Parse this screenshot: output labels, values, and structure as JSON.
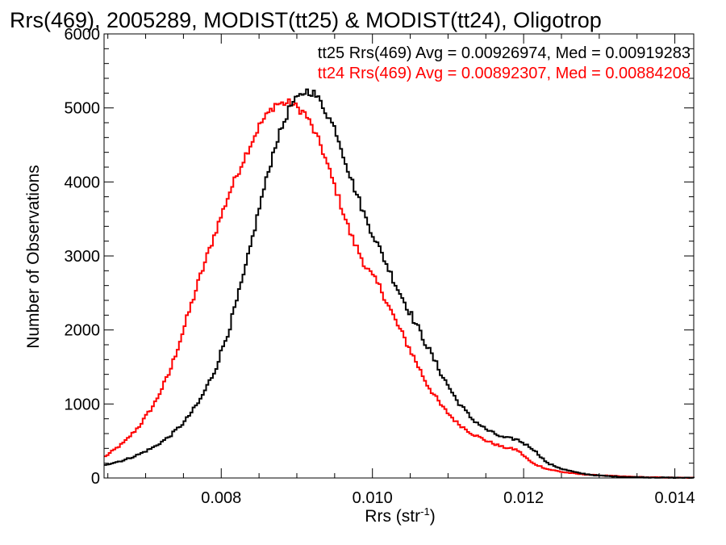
{
  "chart_data": {
    "type": "line",
    "title": "Rrs(469), 2005289, MODIST(tt25) & MODIST(tt24), Oligotrop",
    "xlabel_main": "Rrs (str",
    "xlabel_sup": "-1",
    "xlabel_close": ")",
    "ylabel": "Number of Observations",
    "xlim": [
      0.00645,
      0.01425
    ],
    "ylim": [
      0,
      6000
    ],
    "x_ticks": [
      0.008,
      0.01,
      0.012,
      0.014
    ],
    "x_tick_labels": [
      "0.008",
      "0.010",
      "0.012",
      "0.014"
    ],
    "y_ticks": [
      0,
      1000,
      2000,
      3000,
      4000,
      5000,
      6000
    ],
    "y_tick_labels": [
      "0",
      "1000",
      "2000",
      "3000",
      "4000",
      "5000",
      "6000"
    ],
    "grid": false,
    "step": true,
    "legend_position": "top-right",
    "series": [
      {
        "name": "tt25",
        "legend": "tt25 Rrs(469) Avg = 0.00926974, Med = 0.00919283",
        "color": "#000000",
        "points": [
          [
            0.00645,
            180
          ],
          [
            0.0067,
            240
          ],
          [
            0.0069,
            320
          ],
          [
            0.0071,
            420
          ],
          [
            0.0073,
            560
          ],
          [
            0.0075,
            760
          ],
          [
            0.0077,
            1040
          ],
          [
            0.0079,
            1450
          ],
          [
            0.0081,
            2050
          ],
          [
            0.0083,
            2800
          ],
          [
            0.0085,
            3700
          ],
          [
            0.0087,
            4500
          ],
          [
            0.0089,
            5030
          ],
          [
            0.0091,
            5230
          ],
          [
            0.0092,
            5210
          ],
          [
            0.0093,
            5080
          ],
          [
            0.0095,
            4700
          ],
          [
            0.0097,
            4050
          ],
          [
            0.0099,
            3500
          ],
          [
            0.0101,
            3050
          ],
          [
            0.0103,
            2600
          ],
          [
            0.0105,
            2200
          ],
          [
            0.0107,
            1800
          ],
          [
            0.0109,
            1400
          ],
          [
            0.0111,
            1050
          ],
          [
            0.0113,
            800
          ],
          [
            0.0115,
            650
          ],
          [
            0.0117,
            550
          ],
          [
            0.0119,
            520
          ],
          [
            0.0121,
            400
          ],
          [
            0.0123,
            200
          ],
          [
            0.0125,
            120
          ],
          [
            0.0127,
            70
          ],
          [
            0.0129,
            40
          ],
          [
            0.0131,
            25
          ],
          [
            0.0133,
            15
          ],
          [
            0.0136,
            8
          ],
          [
            0.014,
            3
          ],
          [
            0.01425,
            2
          ]
        ]
      },
      {
        "name": "tt24",
        "legend": "tt24 Rrs(469) Avg = 0.00892307, Med = 0.00884208",
        "color": "#ff0000",
        "points": [
          [
            0.00645,
            290
          ],
          [
            0.0067,
            480
          ],
          [
            0.0069,
            700
          ],
          [
            0.0071,
            1000
          ],
          [
            0.0073,
            1420
          ],
          [
            0.0075,
            2050
          ],
          [
            0.0077,
            2700
          ],
          [
            0.0079,
            3300
          ],
          [
            0.0081,
            3870
          ],
          [
            0.0083,
            4350
          ],
          [
            0.0085,
            4780
          ],
          [
            0.0087,
            5050
          ],
          [
            0.0089,
            5070
          ],
          [
            0.0091,
            4920
          ],
          [
            0.0093,
            4500
          ],
          [
            0.0095,
            3900
          ],
          [
            0.0097,
            3280
          ],
          [
            0.0099,
            2850
          ],
          [
            0.0101,
            2550
          ],
          [
            0.0103,
            2100
          ],
          [
            0.0105,
            1700
          ],
          [
            0.0107,
            1280
          ],
          [
            0.0109,
            970
          ],
          [
            0.0111,
            750
          ],
          [
            0.0113,
            600
          ],
          [
            0.0115,
            500
          ],
          [
            0.0117,
            420
          ],
          [
            0.0119,
            380
          ],
          [
            0.0121,
            200
          ],
          [
            0.0123,
            120
          ],
          [
            0.0125,
            80
          ],
          [
            0.0127,
            55
          ],
          [
            0.0129,
            40
          ],
          [
            0.0131,
            30
          ],
          [
            0.0133,
            20
          ],
          [
            0.0136,
            10
          ],
          [
            0.014,
            4
          ],
          [
            0.01425,
            2
          ]
        ]
      }
    ]
  }
}
